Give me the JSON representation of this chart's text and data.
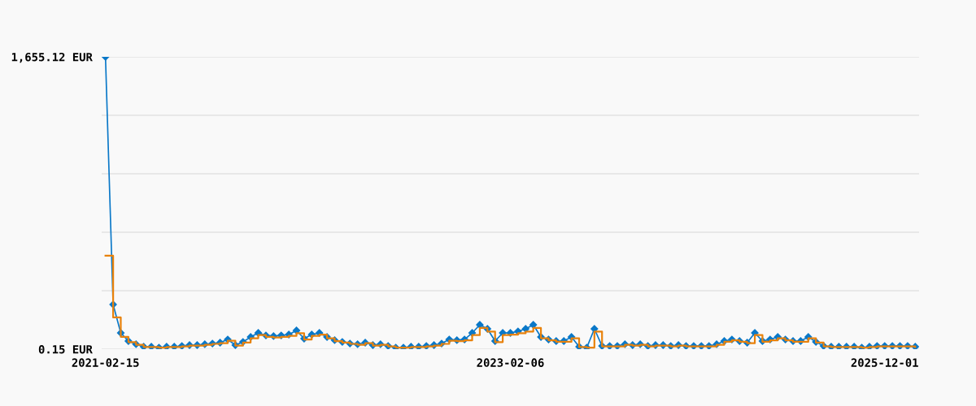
{
  "chart_data": {
    "type": "line",
    "categories": [
      "2021-02-15",
      null,
      null,
      null,
      null,
      null,
      null,
      null,
      null,
      null,
      null,
      null,
      null,
      null,
      null,
      null,
      null,
      null,
      null,
      null,
      null,
      null,
      null,
      null,
      null,
      null,
      null,
      null,
      null,
      null,
      null,
      null,
      null,
      null,
      null,
      null,
      null,
      null,
      null,
      null,
      null,
      null,
      null,
      null,
      null,
      null,
      null,
      null,
      null,
      null,
      null,
      null,
      null,
      "2023-02-06",
      null,
      null,
      null,
      null,
      null,
      null,
      null,
      null,
      null,
      null,
      null,
      null,
      null,
      null,
      null,
      null,
      null,
      null,
      null,
      null,
      null,
      null,
      null,
      null,
      null,
      null,
      null,
      null,
      null,
      null,
      null,
      null,
      null,
      null,
      null,
      null,
      null,
      null,
      null,
      null,
      null,
      null,
      null,
      null,
      null,
      null,
      null,
      null,
      "2025-12-01",
      null,
      null,
      null,
      null
    ],
    "series": [
      {
        "color": "#0a78c8",
        "marker": "diamond",
        "values": [
          1655,
          253,
          92,
          46,
          28,
          14,
          14,
          9,
          14,
          14,
          18,
          23,
          23,
          28,
          32,
          37,
          55,
          23,
          41,
          69,
          92,
          78,
          74,
          78,
          83,
          106,
          60,
          83,
          92,
          69,
          51,
          41,
          32,
          28,
          37,
          23,
          28,
          18,
          9,
          9,
          14,
          14,
          18,
          23,
          32,
          55,
          51,
          55,
          92,
          138,
          115,
          46,
          92,
          92,
          101,
          115,
          138,
          69,
          55,
          46,
          46,
          69,
          14,
          9,
          115,
          18,
          18,
          18,
          28,
          23,
          28,
          18,
          23,
          23,
          18,
          23,
          18,
          18,
          18,
          18,
          28,
          46,
          55,
          46,
          37,
          92,
          46,
          55,
          69,
          55,
          46,
          46,
          69,
          41,
          18,
          14,
          14,
          14,
          14,
          9,
          14,
          18,
          18,
          18,
          18,
          18,
          14
        ]
      },
      {
        "type": "step",
        "color": "#e8820c",
        "values": [
          529,
          180,
          70,
          40,
          25,
          12,
          12,
          9,
          12,
          12,
          16,
          20,
          20,
          25,
          30,
          34,
          48,
          20,
          38,
          62,
          80,
          70,
          66,
          70,
          75,
          90,
          55,
          75,
          82,
          62,
          46,
          38,
          30,
          25,
          34,
          20,
          25,
          16,
          9,
          9,
          12,
          12,
          16,
          20,
          30,
          48,
          46,
          50,
          80,
          120,
          100,
          40,
          80,
          82,
          90,
          100,
          120,
          62,
          50,
          42,
          42,
          62,
          12,
          9,
          100,
          16,
          16,
          16,
          25,
          20,
          25,
          16,
          20,
          20,
          16,
          20,
          16,
          16,
          16,
          16,
          25,
          42,
          50,
          42,
          34,
          80,
          42,
          50,
          62,
          50,
          42,
          42,
          62,
          38,
          16,
          12,
          12,
          12,
          12,
          9,
          12,
          16,
          16,
          16,
          16,
          16,
          12
        ]
      }
    ],
    "ylim": [
      0.15,
      1655.12
    ],
    "yticks": [
      {
        "value": 0.15,
        "label": "0.15 EUR"
      },
      {
        "value": 331.144,
        "label": null
      },
      {
        "value": 662.138,
        "label": null
      },
      {
        "value": 993.132,
        "label": null
      },
      {
        "value": 1324.126,
        "label": null
      },
      {
        "value": 1655.12,
        "label": "1,655.12 EUR"
      }
    ],
    "grid": "y",
    "line_style": "solid",
    "legend": false
  }
}
